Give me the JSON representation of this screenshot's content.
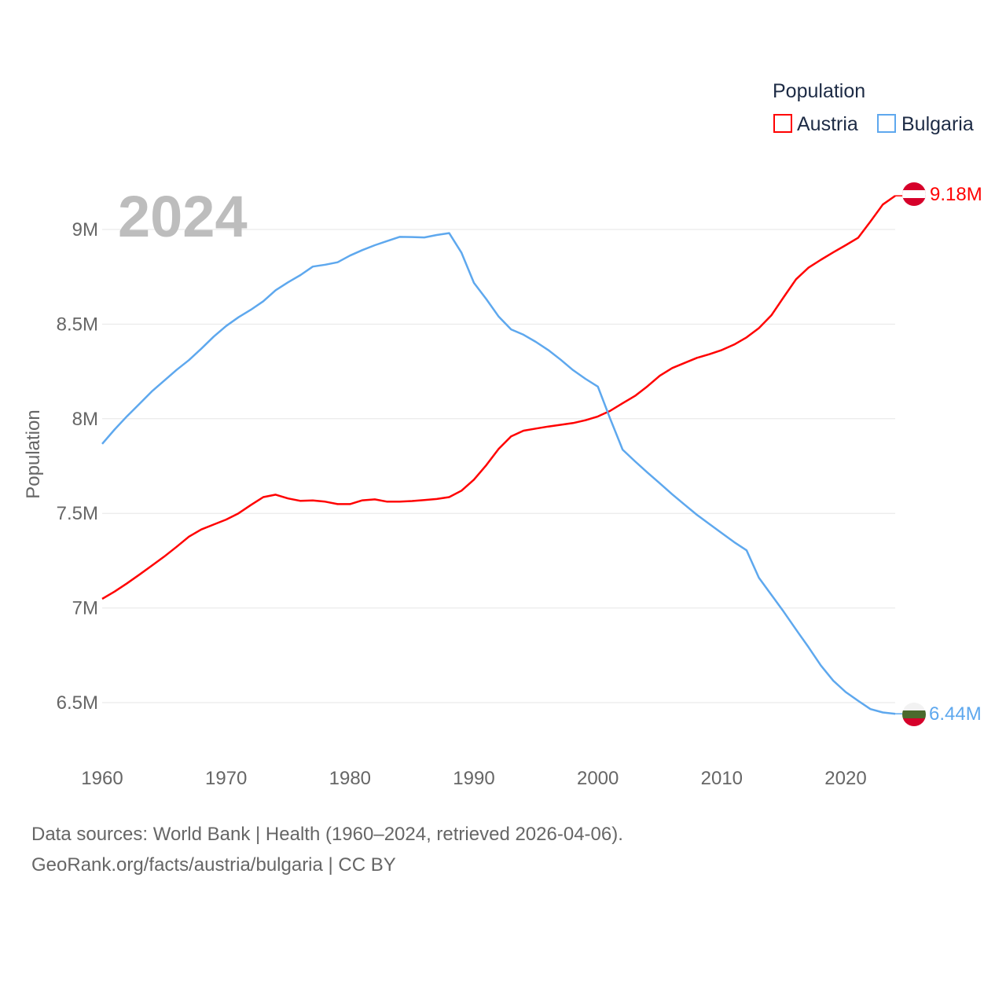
{
  "chart_data": {
    "type": "line",
    "year_label": "2024",
    "ylabel": "Population",
    "legend": {
      "title": "Population",
      "position": "top-right"
    },
    "ylim": [
      6.3,
      9.25
    ],
    "xlim": [
      1960,
      2024
    ],
    "y_ticks": [
      {
        "v": 6.5,
        "label": "6.5M"
      },
      {
        "v": 7,
        "label": "7M"
      },
      {
        "v": 7.5,
        "label": "7.5M"
      },
      {
        "v": 8,
        "label": "8M"
      },
      {
        "v": 8.5,
        "label": "8.5M"
      },
      {
        "v": 9,
        "label": "9M"
      }
    ],
    "x_ticks": [
      {
        "v": 1960,
        "label": "1960"
      },
      {
        "v": 1970,
        "label": "1970"
      },
      {
        "v": 1980,
        "label": "1980"
      },
      {
        "v": 1990,
        "label": "1990"
      },
      {
        "v": 2000,
        "label": "2000"
      },
      {
        "v": 2010,
        "label": "2010"
      },
      {
        "v": 2020,
        "label": "2020"
      }
    ],
    "x_start": 1960,
    "units": "millions",
    "series": [
      {
        "name": "Austria",
        "color": "#ff0000",
        "end_label": "9.18M",
        "values": [
          7.048,
          7.087,
          7.13,
          7.176,
          7.224,
          7.271,
          7.323,
          7.377,
          7.415,
          7.441,
          7.467,
          7.5,
          7.544,
          7.586,
          7.599,
          7.579,
          7.566,
          7.568,
          7.562,
          7.549,
          7.549,
          7.569,
          7.574,
          7.562,
          7.562,
          7.565,
          7.57,
          7.576,
          7.586,
          7.62,
          7.678,
          7.755,
          7.841,
          7.907,
          7.937,
          7.948,
          7.959,
          7.968,
          7.977,
          7.992,
          8.012,
          8.042,
          8.082,
          8.121,
          8.171,
          8.227,
          8.268,
          8.295,
          8.322,
          8.341,
          8.363,
          8.392,
          8.43,
          8.479,
          8.546,
          8.643,
          8.737,
          8.798,
          8.84,
          8.879,
          8.917,
          8.956,
          9.042,
          9.132,
          9.178
        ]
      },
      {
        "name": "Bulgaria",
        "color": "#5ea8ee",
        "end_label": "6.44M",
        "values": [
          7.867,
          7.943,
          8.013,
          8.078,
          8.144,
          8.201,
          8.258,
          8.31,
          8.37,
          8.434,
          8.49,
          8.536,
          8.576,
          8.621,
          8.679,
          8.721,
          8.759,
          8.804,
          8.814,
          8.827,
          8.862,
          8.891,
          8.917,
          8.939,
          8.961,
          8.96,
          8.958,
          8.971,
          8.981,
          8.877,
          8.718,
          8.632,
          8.54,
          8.472,
          8.444,
          8.406,
          8.363,
          8.312,
          8.257,
          8.211,
          8.17,
          8.0,
          7.837,
          7.775,
          7.716,
          7.659,
          7.601,
          7.546,
          7.492,
          7.444,
          7.396,
          7.348,
          7.305,
          7.16,
          7.07,
          6.98,
          6.886,
          6.793,
          6.696,
          6.616,
          6.556,
          6.51,
          6.466,
          6.448,
          6.441
        ]
      }
    ]
  },
  "footer": {
    "line1": "Data sources: World Bank | Health (1960–2024, retrieved 2026-04-06).",
    "line2": "GeoRank.org/facts/austria/bulgaria | CC BY"
  }
}
